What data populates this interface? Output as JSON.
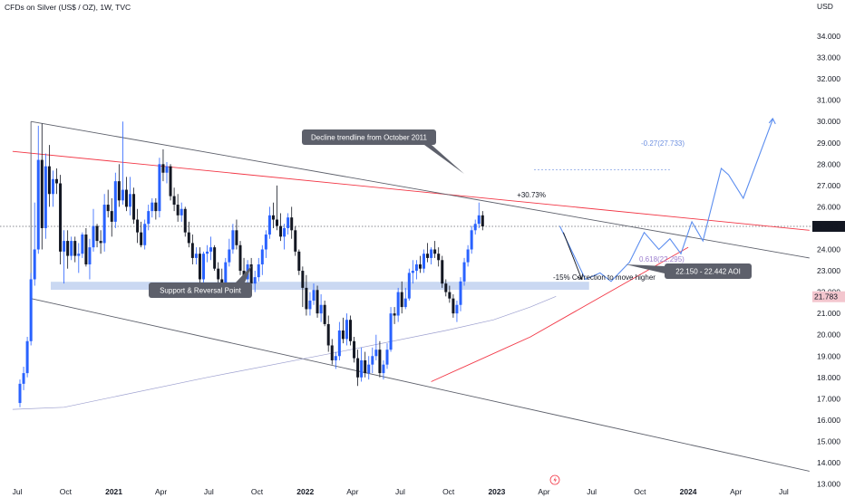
{
  "header": {
    "title": "CFDs on Silver (US$ / OZ), 1W, TVC"
  },
  "chart_data": {
    "type": "candlestick",
    "title": "CFDs on Silver (US$ / OZ), 1W, TVC",
    "y_unit": "USD",
    "y_ticks": [
      "34.000",
      "33.000",
      "32.000",
      "31.000",
      "30.000",
      "29.000",
      "28.000",
      "27.000",
      "26.000",
      "25.000",
      "24.000",
      "23.000",
      "22.000",
      "21.000",
      "20.000",
      "19.000",
      "18.000",
      "17.000",
      "16.000",
      "15.000",
      "14.000",
      "13.000"
    ],
    "ylim": [
      12.5,
      34.6
    ],
    "x_ticks": [
      "Jul",
      "Oct",
      "2021",
      "Apr",
      "Jul",
      "Oct",
      "2022",
      "Apr",
      "Jul",
      "Oct",
      "2023",
      "Apr",
      "Jul",
      "Oct",
      "2024",
      "Apr",
      "Jul"
    ],
    "x_range": [
      "2020-06-22",
      "2024-08-19"
    ],
    "current_price": "25.083",
    "current_price_value": 25.083,
    "second_price": "21.783",
    "second_price_value": 21.783,
    "grid": false,
    "colors": {
      "up": "#2962ff",
      "down": "#131722",
      "trendline": "#787b86",
      "red_line": "#f23645",
      "zone": "#9fb8e8",
      "projection": "#5b8def",
      "fib": "#6c8fe0"
    },
    "annotations": {
      "decline_label": "Decline trendline from October  2011",
      "support_label": "Support & Reversal Point",
      "aoi_label": "22.150 - 22.442 AOI",
      "fib_upper": "-0.27(27.733)",
      "fib_lower": "0.618(22.295)",
      "gain_label": "+30.73%",
      "correction_label": "-15% Correction to move higher"
    },
    "aoi_zone": [
      22.15,
      22.442
    ],
    "fib_levels": [
      {
        "label": "-0.27",
        "value": 27.733
      },
      {
        "label": "0.618",
        "value": 22.295
      }
    ],
    "trendlines": {
      "decline_upper": [
        [
          "2020-07-27",
          30.0
        ],
        [
          "2024-08-19",
          23.6
        ]
      ],
      "channel_lower": [
        [
          "2020-07-27",
          21.7
        ],
        [
          "2024-08-19",
          13.6
        ]
      ],
      "red_resistance": [
        [
          "2020-06-22",
          28.6
        ],
        [
          "2024-08-19",
          24.9
        ]
      ],
      "rising_support": [
        [
          "2022-08-29",
          17.8
        ],
        [
          "2023-03-06",
          19.9
        ],
        [
          "2024-01-01",
          24.1
        ]
      ],
      "moving_average": [
        [
          "2020-06-22",
          16.5
        ],
        [
          "2020-09-28",
          16.6
        ],
        [
          "2021-06-28",
          18.0
        ],
        [
          "2022-03-28",
          19.3
        ],
        [
          "2022-09-26",
          20.2
        ],
        [
          "2022-12-26",
          20.7
        ],
        [
          "2023-03-06",
          21.3
        ],
        [
          "2023-04-24",
          21.8
        ]
      ]
    },
    "projection_path": [
      [
        "2023-05-01",
        25.1
      ],
      [
        "2023-06-19",
        22.6
      ],
      [
        "2023-07-17",
        22.9
      ],
      [
        "2023-08-07",
        22.5
      ],
      [
        "2023-09-11",
        23.4
      ],
      [
        "2023-10-09",
        24.8
      ],
      [
        "2023-11-06",
        24.0
      ],
      [
        "2023-11-27",
        24.5
      ],
      [
        "2023-12-18",
        23.8
      ],
      [
        "2024-01-08",
        25.3
      ],
      [
        "2024-01-29",
        24.4
      ],
      [
        "2024-03-04",
        27.8
      ],
      [
        "2024-03-18",
        27.5
      ],
      [
        "2024-04-15",
        26.4
      ],
      [
        "2024-06-10",
        30.1
      ]
    ],
    "projection_arrow": [
      [
        "2023-05-08",
        24.8
      ],
      [
        "2023-06-12",
        22.6
      ]
    ],
    "series": [
      {
        "name": "Silver",
        "ohlc": [
          [
            16.8,
            17.9,
            16.6,
            17.7
          ],
          [
            17.7,
            18.5,
            17.4,
            18.2
          ],
          [
            18.2,
            19.9,
            18.0,
            19.7
          ],
          [
            19.7,
            22.9,
            19.5,
            22.6
          ],
          [
            22.6,
            26.2,
            22.3,
            24.0
          ],
          [
            24.0,
            29.8,
            23.8,
            28.2
          ],
          [
            28.2,
            29.9,
            24.0,
            25.0
          ],
          [
            25.0,
            28.5,
            24.5,
            27.9
          ],
          [
            27.9,
            28.9,
            26.0,
            26.6
          ],
          [
            26.6,
            27.7,
            26.0,
            27.3
          ],
          [
            27.3,
            27.8,
            26.6,
            27.1
          ],
          [
            27.1,
            27.5,
            23.3,
            23.9
          ],
          [
            23.9,
            24.9,
            22.4,
            24.4
          ],
          [
            24.4,
            24.9,
            23.1,
            23.7
          ],
          [
            23.7,
            24.6,
            23.5,
            24.4
          ],
          [
            24.4,
            24.6,
            23.4,
            23.7
          ],
          [
            23.7,
            24.3,
            22.9,
            23.8
          ],
          [
            23.8,
            24.8,
            23.6,
            24.7
          ],
          [
            24.7,
            25.0,
            23.2,
            23.3
          ],
          [
            23.3,
            24.5,
            22.6,
            24.1
          ],
          [
            24.1,
            25.9,
            23.9,
            25.1
          ],
          [
            25.1,
            25.2,
            24.1,
            24.4
          ],
          [
            24.4,
            24.9,
            23.8,
            24.3
          ],
          [
            24.3,
            26.6,
            23.9,
            26.1
          ],
          [
            26.1,
            26.8,
            25.5,
            25.8
          ],
          [
            25.8,
            26.4,
            24.6,
            25.3
          ],
          [
            25.3,
            27.6,
            25.0,
            27.2
          ],
          [
            27.2,
            28.0,
            26.0,
            26.3
          ],
          [
            26.3,
            30.0,
            26.1,
            26.8
          ],
          [
            26.8,
            27.4,
            25.8,
            26.0
          ],
          [
            26.0,
            27.4,
            25.6,
            26.6
          ],
          [
            26.6,
            26.9,
            25.2,
            25.4
          ],
          [
            25.4,
            25.9,
            24.3,
            24.8
          ],
          [
            24.8,
            25.3,
            24.1,
            24.2
          ],
          [
            24.2,
            25.4,
            24.0,
            25.2
          ],
          [
            25.2,
            26.1,
            24.9,
            25.8
          ],
          [
            25.8,
            26.4,
            25.5,
            26.2
          ],
          [
            26.2,
            26.4,
            25.4,
            25.8
          ],
          [
            25.8,
            28.3,
            25.5,
            28.0
          ],
          [
            28.0,
            28.7,
            27.2,
            27.6
          ],
          [
            27.6,
            28.1,
            27.1,
            27.9
          ],
          [
            27.9,
            28.0,
            26.3,
            26.5
          ],
          [
            26.5,
            26.9,
            25.8,
            26.1
          ],
          [
            26.1,
            26.6,
            25.3,
            25.6
          ],
          [
            25.6,
            26.2,
            25.3,
            25.9
          ],
          [
            25.9,
            26.0,
            24.6,
            24.8
          ],
          [
            24.8,
            25.3,
            24.1,
            24.3
          ],
          [
            24.3,
            24.7,
            23.3,
            23.6
          ],
          [
            23.6,
            24.1,
            23.3,
            23.8
          ],
          [
            23.8,
            24.1,
            22.0,
            22.6
          ],
          [
            22.6,
            23.9,
            22.3,
            23.8
          ],
          [
            23.8,
            24.2,
            23.4,
            23.9
          ],
          [
            23.9,
            24.6,
            23.5,
            24.1
          ],
          [
            24.1,
            24.2,
            23.0,
            23.1
          ],
          [
            23.1,
            23.4,
            22.4,
            22.6
          ],
          [
            22.6,
            23.1,
            21.9,
            22.3
          ],
          [
            22.3,
            23.6,
            22.2,
            23.4
          ],
          [
            23.4,
            24.5,
            23.2,
            24.0
          ],
          [
            24.0,
            25.2,
            23.8,
            24.9
          ],
          [
            24.9,
            25.4,
            24.0,
            24.2
          ],
          [
            24.2,
            24.4,
            22.8,
            23.0
          ],
          [
            23.0,
            23.6,
            22.3,
            22.6
          ],
          [
            22.6,
            23.5,
            22.3,
            23.3
          ],
          [
            23.3,
            23.6,
            22.2,
            22.4
          ],
          [
            22.4,
            23.0,
            22.0,
            22.7
          ],
          [
            22.7,
            23.6,
            22.5,
            23.3
          ],
          [
            23.3,
            24.2,
            22.8,
            24.0
          ],
          [
            24.0,
            24.9,
            23.6,
            24.7
          ],
          [
            24.7,
            26.0,
            24.5,
            25.6
          ],
          [
            25.6,
            26.2,
            25.0,
            25.4
          ],
          [
            25.4,
            27.0,
            24.9,
            25.1
          ],
          [
            25.1,
            25.7,
            24.4,
            24.6
          ],
          [
            24.6,
            25.2,
            24.0,
            25.0
          ],
          [
            25.0,
            25.7,
            24.7,
            25.5
          ],
          [
            25.5,
            26.0,
            24.5,
            24.9
          ],
          [
            24.9,
            25.1,
            23.7,
            23.9
          ],
          [
            23.9,
            24.0,
            22.8,
            23.0
          ],
          [
            23.0,
            23.2,
            21.3,
            22.2
          ],
          [
            22.2,
            22.8,
            20.9,
            21.2
          ],
          [
            21.2,
            22.0,
            20.9,
            21.6
          ],
          [
            21.6,
            22.4,
            21.4,
            22.1
          ],
          [
            22.1,
            22.3,
            20.8,
            21.0
          ],
          [
            21.0,
            21.9,
            20.6,
            21.4
          ],
          [
            21.4,
            21.6,
            20.4,
            20.5
          ],
          [
            20.5,
            20.9,
            19.2,
            19.5
          ],
          [
            19.5,
            19.8,
            18.6,
            18.8
          ],
          [
            18.8,
            19.2,
            18.4,
            19.0
          ],
          [
            19.0,
            20.6,
            18.8,
            20.2
          ],
          [
            20.2,
            20.8,
            19.6,
            19.8
          ],
          [
            19.8,
            21.0,
            19.5,
            20.7
          ],
          [
            20.7,
            20.9,
            19.5,
            19.7
          ],
          [
            19.7,
            19.9,
            18.7,
            18.9
          ],
          [
            18.9,
            19.3,
            17.6,
            18.0
          ],
          [
            18.0,
            19.4,
            17.8,
            18.8
          ],
          [
            18.8,
            19.2,
            18.0,
            18.2
          ],
          [
            18.2,
            19.0,
            17.9,
            18.6
          ],
          [
            18.6,
            19.4,
            18.2,
            19.0
          ],
          [
            19.0,
            20.0,
            18.8,
            19.3
          ],
          [
            19.3,
            19.7,
            18.0,
            18.2
          ],
          [
            18.2,
            18.8,
            17.9,
            18.6
          ],
          [
            18.6,
            19.6,
            18.4,
            19.3
          ],
          [
            19.3,
            21.3,
            19.2,
            21.0
          ],
          [
            21.0,
            21.3,
            20.5,
            20.9
          ],
          [
            20.9,
            22.2,
            20.6,
            22.0
          ],
          [
            22.0,
            22.5,
            21.0,
            21.3
          ],
          [
            21.3,
            22.2,
            21.2,
            21.7
          ],
          [
            21.7,
            23.1,
            21.6,
            22.9
          ],
          [
            22.9,
            23.5,
            22.4,
            23.0
          ],
          [
            23.0,
            23.5,
            22.6,
            23.3
          ],
          [
            23.3,
            23.7,
            22.9,
            23.1
          ],
          [
            23.1,
            24.0,
            22.9,
            23.8
          ],
          [
            23.8,
            24.3,
            23.4,
            23.6
          ],
          [
            23.6,
            24.1,
            23.3,
            24.0
          ],
          [
            24.0,
            24.4,
            23.6,
            23.8
          ],
          [
            23.8,
            24.1,
            23.2,
            23.5
          ],
          [
            23.5,
            23.7,
            22.2,
            22.4
          ],
          [
            22.4,
            22.6,
            21.8,
            22.0
          ],
          [
            22.0,
            22.3,
            21.5,
            21.7
          ],
          [
            21.7,
            21.9,
            20.8,
            21.0
          ],
          [
            21.0,
            21.6,
            20.6,
            21.4
          ],
          [
            21.4,
            22.7,
            21.1,
            22.5
          ],
          [
            22.5,
            23.6,
            22.3,
            23.4
          ],
          [
            23.4,
            24.2,
            23.2,
            24.0
          ],
          [
            24.0,
            25.1,
            23.8,
            24.9
          ],
          [
            24.9,
            25.4,
            24.7,
            25.2
          ],
          [
            25.2,
            26.2,
            25.0,
            25.6
          ],
          [
            25.6,
            25.8,
            24.9,
            25.083
          ]
        ]
      }
    ]
  }
}
